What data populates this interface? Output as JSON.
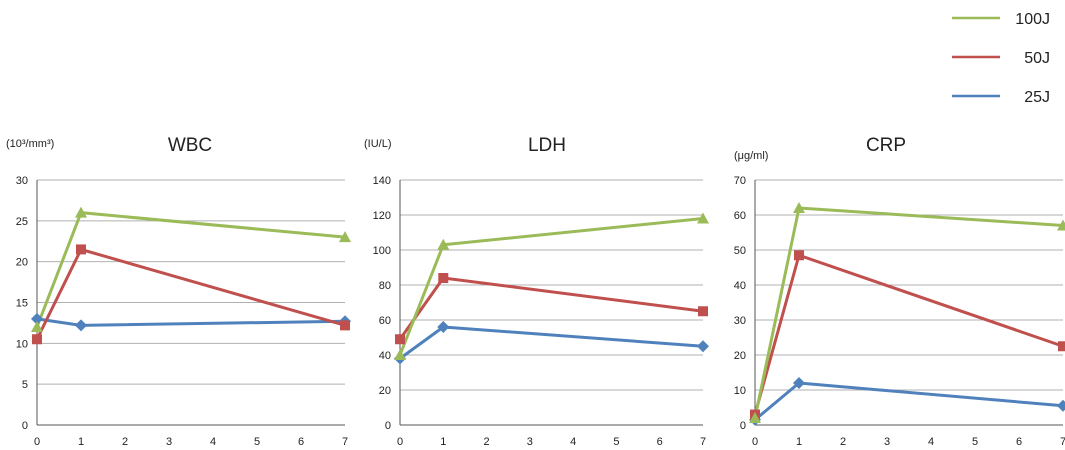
{
  "legend": [
    {
      "name": "100J",
      "color": "#9bbb59"
    },
    {
      "name": "50J",
      "color": "#c0504d"
    },
    {
      "name": "25J",
      "color": "#4f81bd"
    }
  ],
  "chart_data": [
    {
      "type": "line",
      "title": "WBC",
      "ylabel": "(10³/mm³)",
      "xlabel": "",
      "x": [
        0,
        1,
        7
      ],
      "xlim": [
        0,
        7
      ],
      "xticks": [
        "0",
        "1",
        "2",
        "3",
        "4",
        "5",
        "6",
        "7"
      ],
      "ylim": [
        0,
        30
      ],
      "yticks": [
        0,
        5,
        10,
        15,
        20,
        25,
        30
      ],
      "grid": true,
      "legend_position": "top-right",
      "series": [
        {
          "name": "100J",
          "marker": "triangle",
          "values": [
            12,
            26,
            23
          ]
        },
        {
          "name": "50J",
          "marker": "square",
          "values": [
            10.5,
            21.5,
            12.2
          ]
        },
        {
          "name": "25J",
          "marker": "diamond",
          "values": [
            13,
            12.2,
            12.7
          ]
        }
      ]
    },
    {
      "type": "line",
      "title": "LDH",
      "ylabel": "(IU/L)",
      "xlabel": "",
      "x": [
        0,
        1,
        7
      ],
      "xlim": [
        0,
        7
      ],
      "xticks": [
        "0",
        "1",
        "2",
        "3",
        "4",
        "5",
        "6",
        "7"
      ],
      "ylim": [
        0,
        140
      ],
      "yticks": [
        0,
        20,
        40,
        60,
        80,
        100,
        120,
        140
      ],
      "grid": true,
      "legend_position": "top-right",
      "series": [
        {
          "name": "100J",
          "marker": "triangle",
          "values": [
            40,
            103,
            118
          ]
        },
        {
          "name": "50J",
          "marker": "square",
          "values": [
            49,
            84,
            65
          ]
        },
        {
          "name": "25J",
          "marker": "diamond",
          "values": [
            38,
            56,
            45
          ]
        }
      ]
    },
    {
      "type": "line",
      "title": "CRP",
      "ylabel": "(μg/ml)",
      "xlabel": "",
      "x": [
        0,
        1,
        7
      ],
      "xlim": [
        0,
        7
      ],
      "xticks": [
        "0",
        "1",
        "2",
        "3",
        "4",
        "5",
        "6",
        "7"
      ],
      "ylim": [
        0,
        70
      ],
      "yticks": [
        0,
        10,
        20,
        30,
        40,
        50,
        60,
        70
      ],
      "grid": true,
      "legend_position": "top-right",
      "series": [
        {
          "name": "100J",
          "marker": "triangle",
          "values": [
            2,
            62,
            57
          ]
        },
        {
          "name": "50J",
          "marker": "square",
          "values": [
            3,
            48.5,
            22.5
          ]
        },
        {
          "name": "25J",
          "marker": "diamond",
          "values": [
            1.5,
            12,
            5.5
          ]
        }
      ]
    }
  ]
}
